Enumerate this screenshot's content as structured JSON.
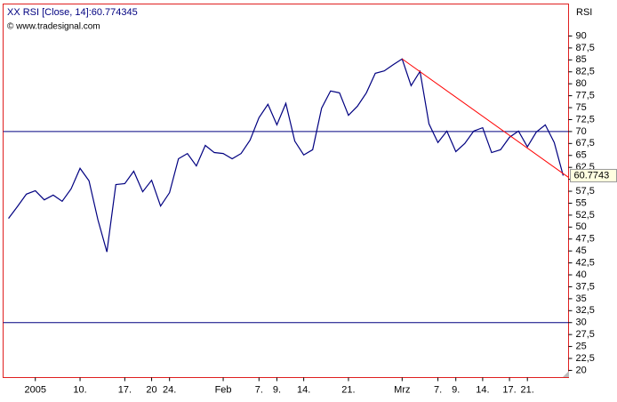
{
  "chart_data": {
    "type": "line",
    "title": "XX RSI [Close, 14]:60.774345",
    "subtitle": "© www.tradesignal.com",
    "y_label": "RSI",
    "x": [
      0,
      1,
      2,
      3,
      4,
      5,
      6,
      7,
      8,
      9,
      10,
      11,
      12,
      13,
      14,
      15,
      16,
      17,
      18,
      19,
      20,
      21,
      22,
      23,
      24,
      25,
      26,
      27,
      28,
      29,
      30,
      31,
      32,
      33,
      34,
      35,
      36,
      37,
      38,
      39,
      40,
      41,
      42,
      43,
      44,
      45,
      46,
      47,
      48,
      49,
      50,
      51,
      52,
      53,
      54,
      55,
      56,
      57,
      58,
      59,
      60,
      61,
      62
    ],
    "series": [
      {
        "name": "RSI",
        "color": "#000080",
        "values": [
          51.8,
          54.3,
          56.9,
          57.6,
          55.7,
          56.7,
          55.4,
          58.0,
          62.3,
          59.7,
          51.5,
          44.8,
          58.9,
          59.1,
          61.7,
          57.4,
          59.8,
          54.4,
          57.2,
          64.3,
          65.4,
          62.8,
          67.1,
          65.6,
          65.4,
          64.3,
          65.4,
          68.2,
          72.9,
          75.7,
          71.4,
          75.9,
          68.0,
          65.1,
          66.2,
          74.9,
          78.5,
          78.1,
          73.4,
          75.3,
          78.1,
          82.2,
          82.7,
          84.0,
          85.2,
          79.6,
          82.6,
          71.6,
          67.7,
          70.1,
          65.8,
          67.5,
          70.1,
          70.8,
          65.6,
          66.2,
          68.8,
          70.1,
          66.8,
          69.9,
          71.4,
          67.7,
          60.774345
        ]
      }
    ],
    "current_value": {
      "value": 60.774345,
      "label": "60.7743"
    },
    "hlines": [
      70,
      30
    ],
    "trendline": {
      "color": "#ff0000",
      "x": [
        44,
        62.6
      ],
      "y": [
        85.2,
        60.4
      ]
    },
    "xlim": [
      -0.6,
      62.6
    ],
    "xticks": [
      {
        "value": 3,
        "label": "2005"
      },
      {
        "value": 8,
        "label": "10."
      },
      {
        "value": 13,
        "label": "17."
      },
      {
        "value": 16,
        "label": "20"
      },
      {
        "value": 18,
        "label": "24."
      },
      {
        "value": 24,
        "label": "Feb"
      },
      {
        "value": 28,
        "label": "7."
      },
      {
        "value": 30,
        "label": "9."
      },
      {
        "value": 33,
        "label": "14."
      },
      {
        "value": 38,
        "label": "21."
      },
      {
        "value": 44,
        "label": "Mrz"
      },
      {
        "value": 48,
        "label": "7."
      },
      {
        "value": 50,
        "label": "9."
      },
      {
        "value": 53,
        "label": "14."
      },
      {
        "value": 56,
        "label": "17."
      },
      {
        "value": 58,
        "label": "21."
      }
    ],
    "ylim": [
      18.5,
      96.7
    ],
    "yticks": [
      20,
      {
        "value": 22.5,
        "label": "22,5"
      },
      25,
      {
        "value": 27.5,
        "label": "27,5"
      },
      30,
      {
        "value": 32.5,
        "label": "32,5"
      },
      35,
      {
        "value": 37.5,
        "label": "37,5"
      },
      40,
      {
        "value": 42.5,
        "label": "42,5"
      },
      45,
      {
        "value": 47.5,
        "label": "47,5"
      },
      50,
      {
        "value": 52.5,
        "label": "52,5"
      },
      55,
      {
        "value": 57.5,
        "label": "57,5"
      },
      60,
      {
        "value": 62.5,
        "label": "62,5"
      },
      65,
      {
        "value": 67.5,
        "label": "67,5"
      },
      70,
      {
        "value": 72.5,
        "label": "72,5"
      },
      75,
      {
        "value": 77.5,
        "label": "77,5"
      },
      80,
      {
        "value": 82.5,
        "label": "82,5"
      },
      85,
      {
        "value": 87.5,
        "label": "87,5"
      },
      90
    ],
    "grid": false
  }
}
